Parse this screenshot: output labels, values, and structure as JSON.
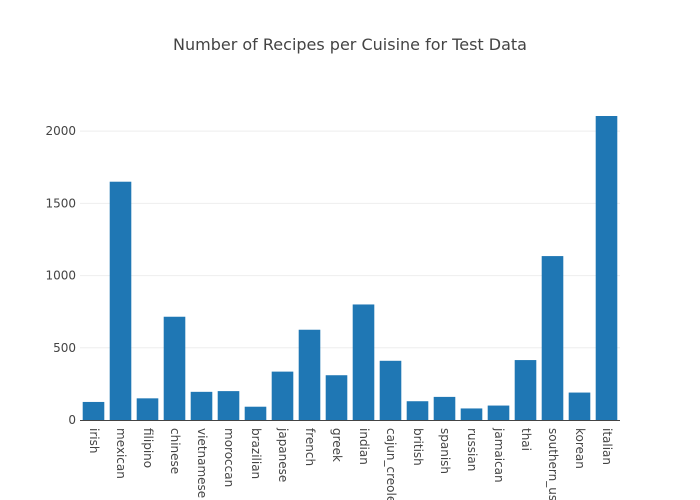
{
  "chart_data": {
    "type": "bar",
    "title": "Number of Recipes per Cuisine for Test Data",
    "xlabel": "",
    "ylabel": "",
    "categories": [
      "irish",
      "mexican",
      "filipino",
      "chinese",
      "vietnamese",
      "moroccan",
      "brazilian",
      "japanese",
      "french",
      "greek",
      "indian",
      "cajun_creole",
      "british",
      "spanish",
      "russian",
      "jamaican",
      "thai",
      "southern_us",
      "korean",
      "italian"
    ],
    "values": [
      125,
      1650,
      150,
      715,
      195,
      200,
      92,
      335,
      625,
      310,
      800,
      410,
      130,
      160,
      80,
      100,
      415,
      1135,
      190,
      2105
    ],
    "ylim": [
      0,
      2105
    ],
    "yticks": [
      0,
      500,
      1000,
      1500,
      2000
    ],
    "ytick_labels": [
      "0",
      "500",
      "1000",
      "1500",
      "2000"
    ],
    "grid": true,
    "legend": "none",
    "bar_color": "#1f77b4"
  }
}
